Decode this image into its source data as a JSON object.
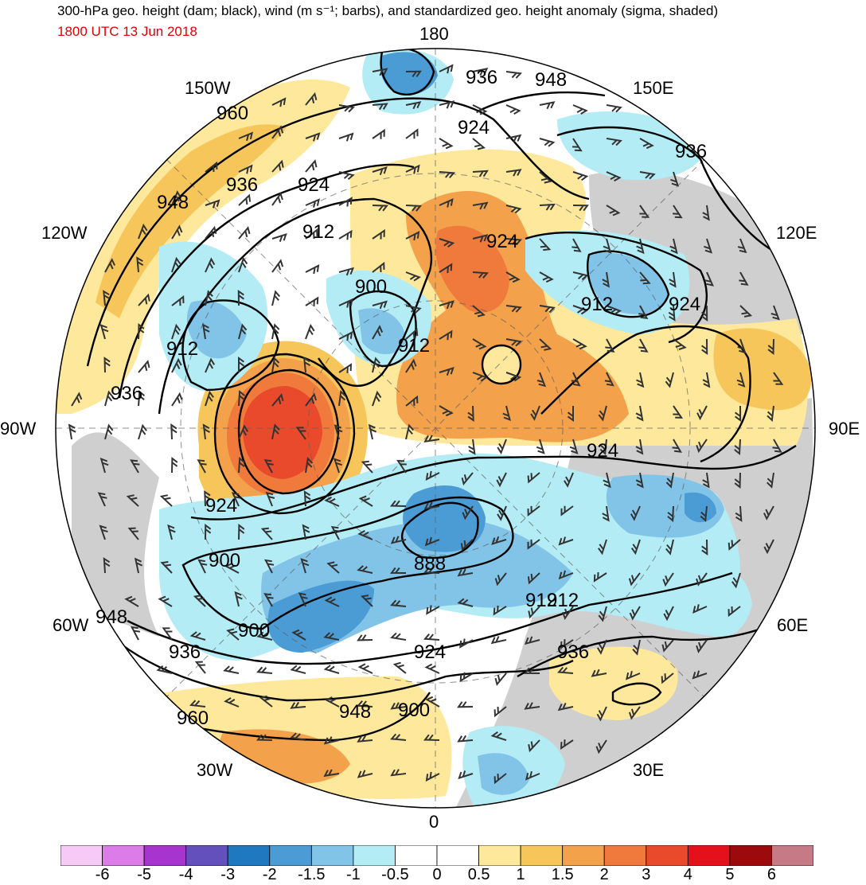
{
  "header": {
    "title": "300-hPa geo. height (dam; black), wind (m s⁻¹; barbs), and standardized geo. height anomaly (sigma, shaded)",
    "valid_time": "1800 UTC 13 Jun 2018"
  },
  "longitude_labels": {
    "n180": "180",
    "n150w": "150W",
    "n150e": "150E",
    "n120w": "120W",
    "n120e": "120E",
    "n90w": "90W",
    "n90e": "90E",
    "n60w": "60W",
    "n60e": "60E",
    "n30w": "30W",
    "n30e": "30E",
    "n0": "0"
  },
  "contour_labels": [
    "936",
    "948",
    "924",
    "960",
    "936",
    "948",
    "924",
    "912",
    "936",
    "924",
    "912",
    "900",
    "924",
    "912",
    "924",
    "912",
    "912",
    "936",
    "924",
    "900",
    "888",
    "912",
    "900",
    "948",
    "936",
    "924",
    "936",
    "960",
    "948",
    "900"
  ],
  "colorbar": {
    "colors": [
      "#f7c9f7",
      "#dc7ce8",
      "#a734cf",
      "#6450bd",
      "#1f79c0",
      "#4b9bd4",
      "#82c4e8",
      "#b3ecf5",
      "#ffffff",
      "#ffffff",
      "#fde89c",
      "#f6c65a",
      "#f3a14a",
      "#ef7a3c",
      "#ea4a2c",
      "#e4111c",
      "#9c0a0e",
      "#c57a86"
    ],
    "ticks": [
      "-6",
      "-5",
      "-4",
      "-3",
      "-2",
      "-1.5",
      "-1",
      "-0.5",
      "0",
      "0.5",
      "1",
      "1.5",
      "2",
      "3",
      "4",
      "5",
      "6"
    ]
  },
  "legend_colors": {
    "positive_weak": "#fde89c",
    "positive_mid": "#f6c65a",
    "positive_strong": "#f3a14a",
    "positive_stronger": "#ef7a3c",
    "positive_max": "#ea4a2c",
    "negative_weak": "#b3ecf5",
    "negative_mid": "#82c4e8",
    "negative_strong": "#4b9bd4",
    "negative_max": "#1f79c0",
    "land_gray": "#cfcfcf"
  }
}
